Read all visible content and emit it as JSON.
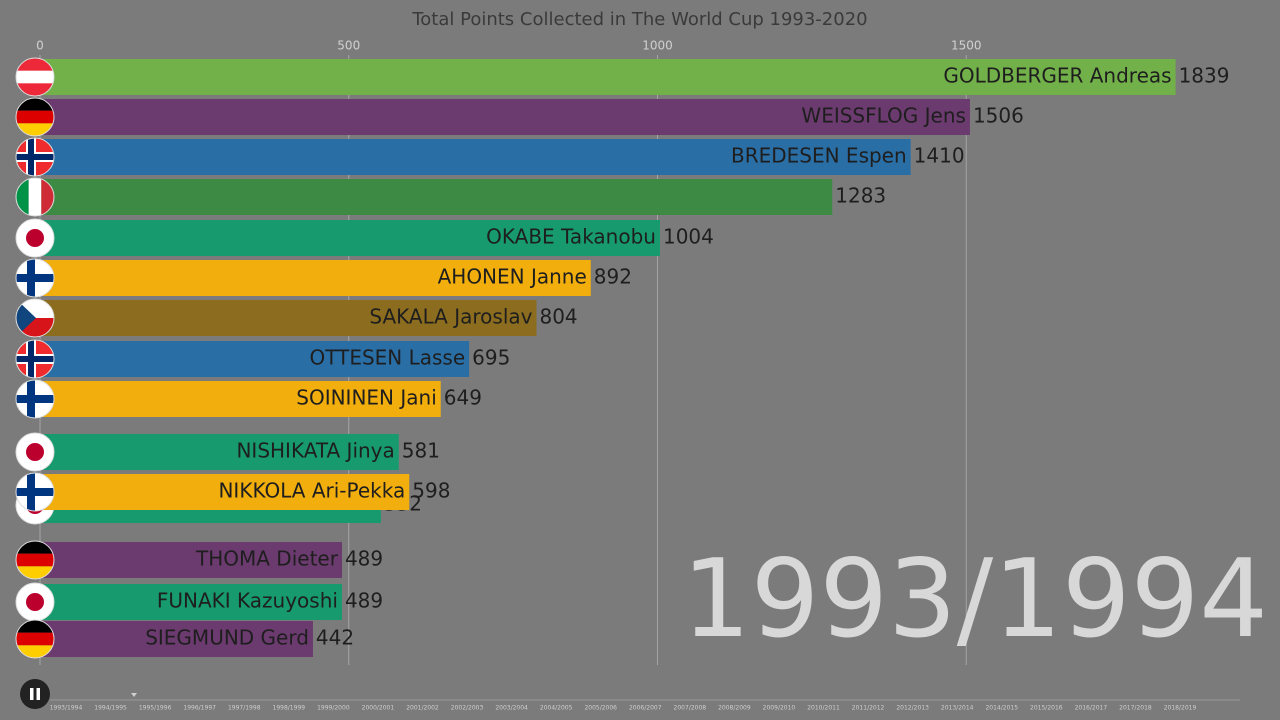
{
  "chart_data": {
    "type": "bar",
    "title": "Total Points Collected in The World Cup 1993-2020",
    "categories": [
      "GOLDBERGER Andreas",
      "WEISSFLOG Jens",
      "BREDESEN Espen",
      null,
      "OKABE Takanobu",
      "AHONEN Janne",
      "SAKALA Jaroslav",
      "OTTESEN Lasse",
      "SOININEN Jani",
      "NISHIKATA Jinya",
      null,
      "NIKKOLA Ari-Pekka",
      "THOMA Dieter",
      "FUNAKI Kazuyoshi",
      "SIEGMUND Gerd"
    ],
    "values": [
      1839,
      1506,
      1410,
      1283,
      1004,
      892,
      804,
      695,
      649,
      581,
      552,
      598,
      489,
      489,
      442
    ],
    "colors": [
      "#72b04a",
      "#6b3a6e",
      "#2a6ea6",
      "#3d8a45",
      "#169a6e",
      "#f1ae0d",
      "#8c6d1f",
      "#2a6ea6",
      "#f1ae0d",
      "#169a6e",
      "#169a6e",
      "#f1ae0d",
      "#6b3a6e",
      "#169a6e",
      "#6b3a6e"
    ],
    "xlim": [
      0,
      2000
    ],
    "xticks": [
      0,
      500,
      1000,
      1500
    ],
    "grid": true,
    "period": "1993/1994",
    "timeline": [
      "1993/1994",
      "1994/1995",
      "1995/1996",
      "1996/1997",
      "1997/1998",
      "1998/1999",
      "1999/2000",
      "2000/2001",
      "2001/2002",
      "2002/2003",
      "2003/2004",
      "2004/2005",
      "2005/2006",
      "2006/2007",
      "2007/2008",
      "2008/2009",
      "2009/2010",
      "2010/2011",
      "2011/2012",
      "2012/2013",
      "2013/2014",
      "2014/2015",
      "2015/2016",
      "2016/2017",
      "2017/2018",
      "2018/2019"
    ]
  }
}
